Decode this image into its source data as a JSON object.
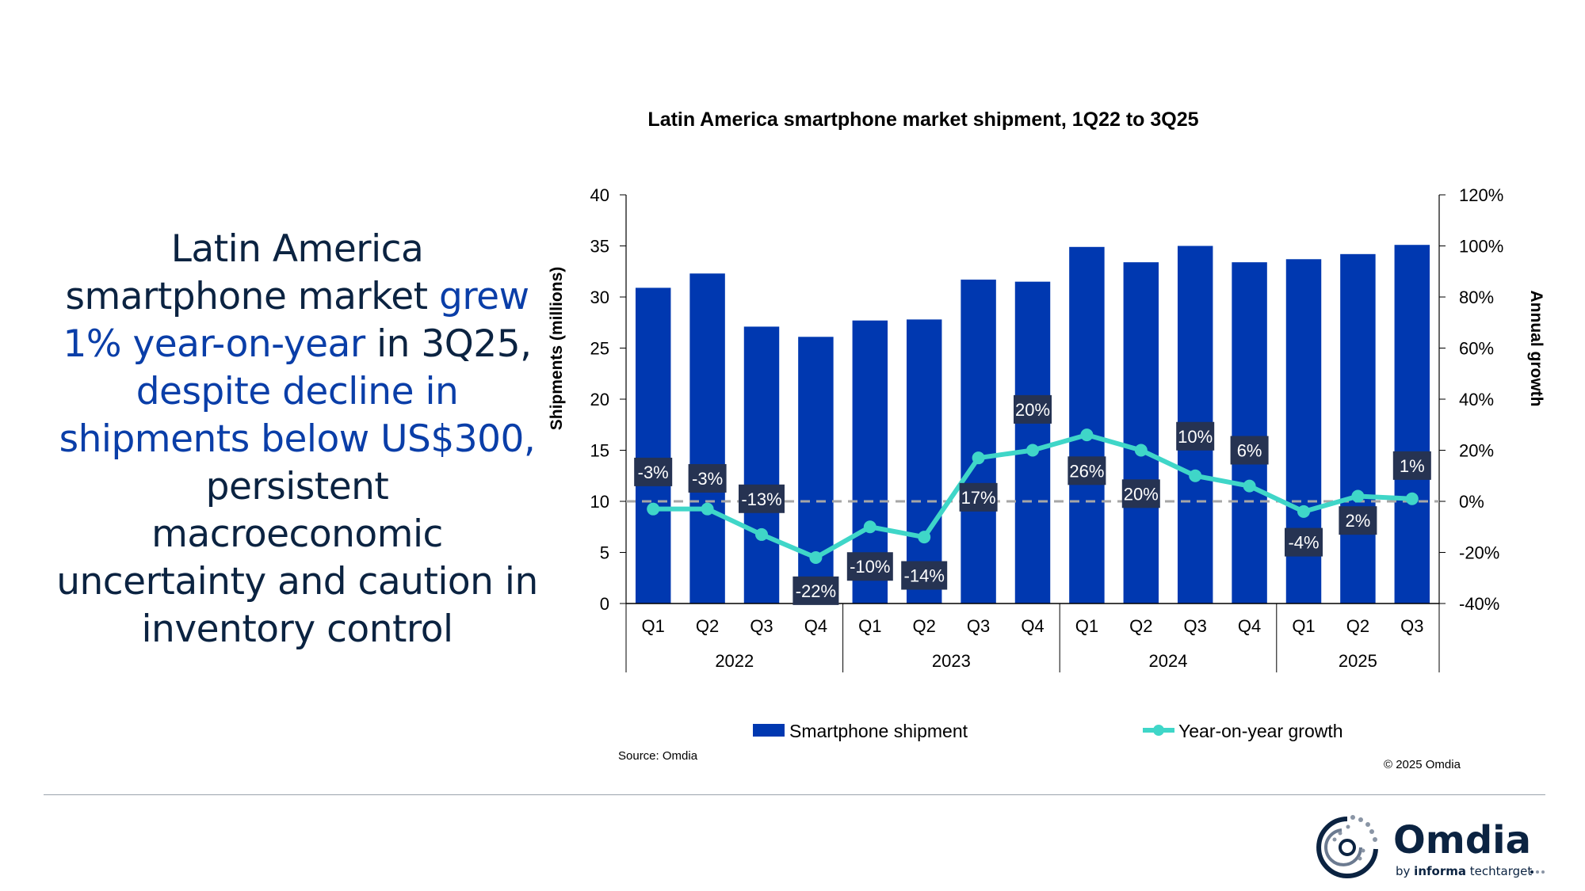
{
  "headline": {
    "parts": [
      {
        "text": "Latin America smartphone market ",
        "highlight": false
      },
      {
        "text": "grew 1% year-on-year",
        "highlight": true
      },
      {
        "text": " in 3Q25, ",
        "highlight": false
      },
      {
        "text": "despite decline in shipments below US$300,",
        "highlight": true
      },
      {
        "text": " persistent macroeconomic uncertainty and caution in inventory control",
        "highlight": false
      }
    ]
  },
  "chart_data": {
    "type": "bar+line",
    "title": "Latin America smartphone market shipment, 1Q22 to 3Q25",
    "ylabel": "Shipments (millions)",
    "y2label": "Annual growth",
    "ylim": [
      0,
      40
    ],
    "yticks": [
      "0",
      "5",
      "10",
      "15",
      "20",
      "25",
      "30",
      "35",
      "40"
    ],
    "y2lim": [
      -40,
      120
    ],
    "y2ticks": [
      "-40%",
      "-20%",
      "0%",
      "20%",
      "40%",
      "60%",
      "80%",
      "100%",
      "120%"
    ],
    "categories": [
      "Q1",
      "Q2",
      "Q3",
      "Q4",
      "Q1",
      "Q2",
      "Q3",
      "Q4",
      "Q1",
      "Q2",
      "Q3",
      "Q4",
      "Q1",
      "Q2",
      "Q3"
    ],
    "years": [
      {
        "label": "2022",
        "quarters": 4
      },
      {
        "label": "2023",
        "quarters": 4
      },
      {
        "label": "2024",
        "quarters": 4
      },
      {
        "label": "2025",
        "quarters": 3
      }
    ],
    "series": [
      {
        "name": "Smartphone shipment",
        "type": "bar",
        "axis": "left",
        "color": "#0038b0",
        "values": [
          30.9,
          32.3,
          27.1,
          26.1,
          27.7,
          27.8,
          31.7,
          31.5,
          34.9,
          33.4,
          35.0,
          33.4,
          33.7,
          34.2,
          35.1
        ]
      },
      {
        "name": "Year-on-year growth",
        "type": "line",
        "axis": "right",
        "color": "#3fd6c8",
        "values": [
          -3,
          -3,
          -13,
          -22,
          -10,
          -14,
          17,
          20,
          26,
          20,
          10,
          6,
          -4,
          2,
          1
        ],
        "labels": [
          "-3%",
          "-3%",
          "-13%",
          "-22%",
          "-10%",
          "-14%",
          "17%",
          "20%",
          "26%",
          "20%",
          "10%",
          "6%",
          "-4%",
          "2%",
          "1%"
        ]
      }
    ],
    "reference_line": {
      "axis": "right",
      "value": 0,
      "style": "dashed",
      "color": "#a6a6a6"
    },
    "label_box_color": "#263352",
    "grid": false,
    "legend": "bottom"
  },
  "source": "Source: Omdia",
  "copyright": "© 2025 Omdia",
  "logo": {
    "name": "Omdia",
    "tagline": "by informa techtarget"
  }
}
